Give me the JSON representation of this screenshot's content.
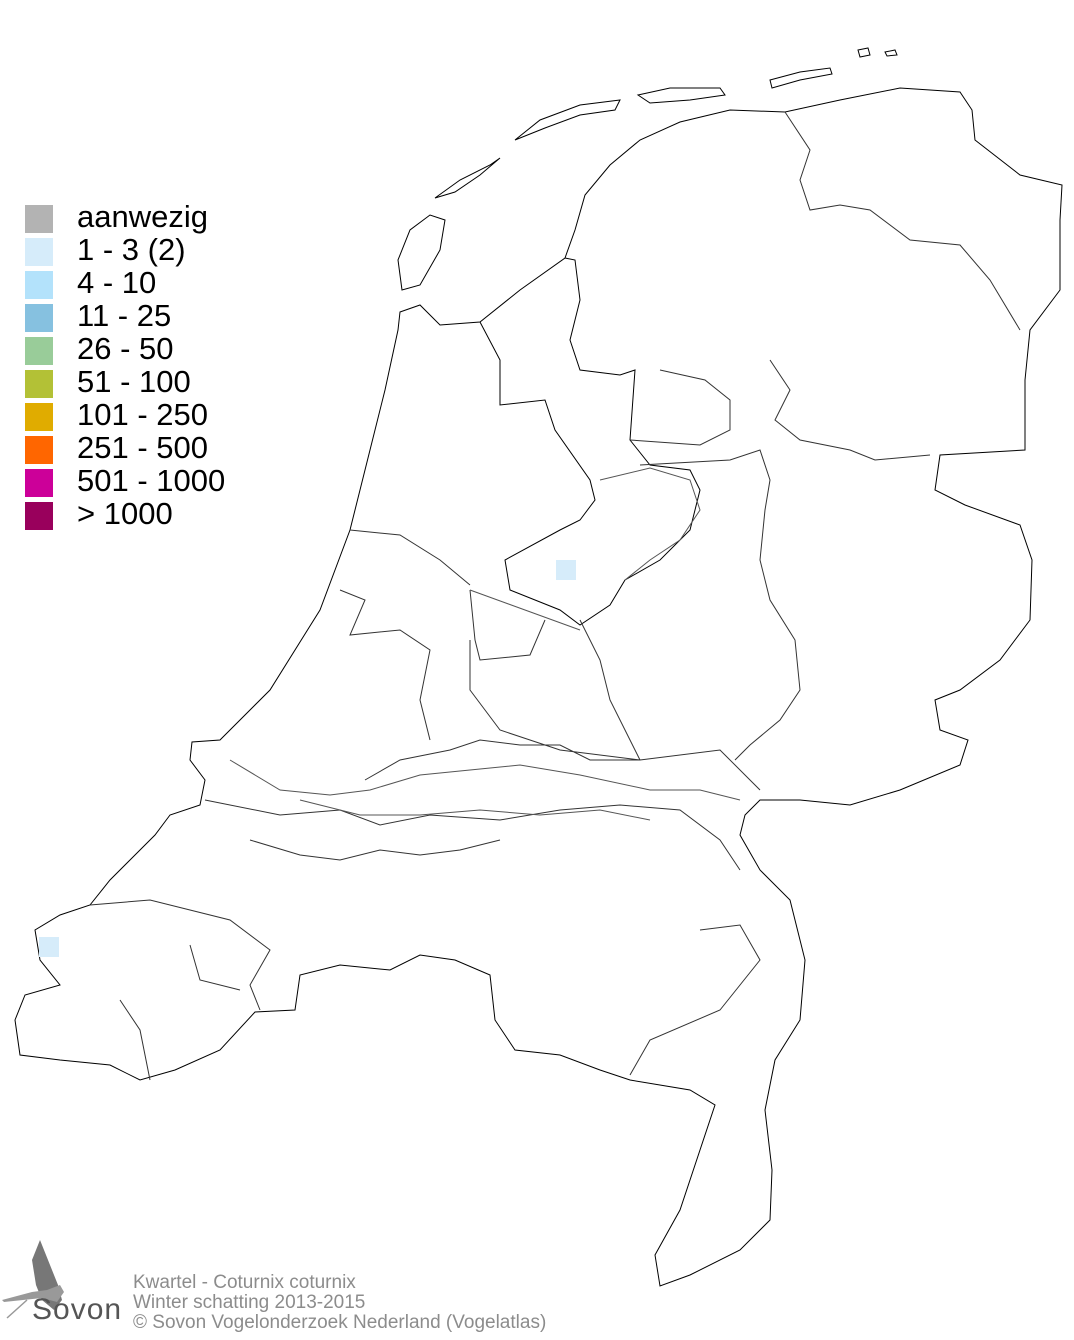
{
  "legend": {
    "items": [
      {
        "label": "aanwezig",
        "color": "#b3b3b3"
      },
      {
        "label": "1 - 3 (2)",
        "color": "#d6ecfa"
      },
      {
        "label": "4 - 10",
        "color": "#b3e2fb"
      },
      {
        "label": "11 - 25",
        "color": "#86c1e0"
      },
      {
        "label": "26 - 50",
        "color": "#99cc99"
      },
      {
        "label": "51 - 100",
        "color": "#b3c136"
      },
      {
        "label": "101 - 250",
        "color": "#e0ac00"
      },
      {
        "label": "251 - 500",
        "color": "#ff6600"
      },
      {
        "label": "501 - 1000",
        "color": "#cc0099"
      },
      {
        "label": "> 1000",
        "color": "#99005c"
      }
    ]
  },
  "map": {
    "observations": [
      {
        "class": "1 - 3 (2)",
        "color": "#d6ecfa",
        "location": "Flevoland"
      },
      {
        "class": "1 - 3 (2)",
        "color": "#d6ecfa",
        "location": "Zeeuws-Vlaanderen west"
      }
    ]
  },
  "credits": {
    "species": "Kwartel - Coturnix coturnix",
    "survey": "Winter schatting 2013-2015",
    "copyright": "© Sovon Vogelonderzoek Nederland (Vogelatlas)"
  },
  "logo": {
    "text": "Sovon"
  }
}
